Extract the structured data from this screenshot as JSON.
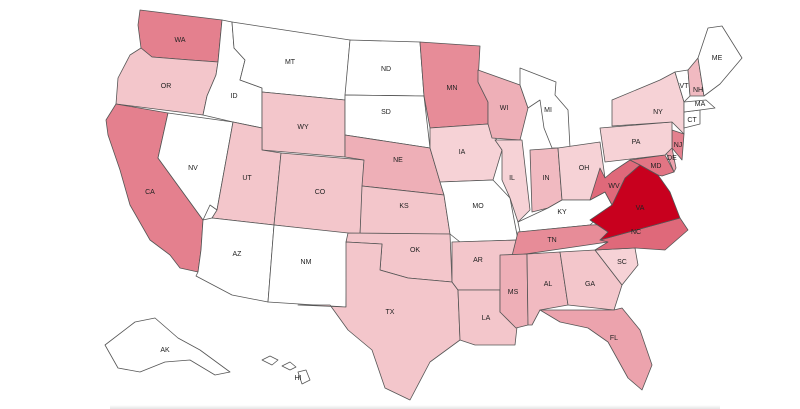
{
  "map": {
    "states": [
      {
        "code": "WA",
        "label": "WA",
        "level": 0.45
      },
      {
        "code": "OR",
        "label": "OR",
        "level": 0.15
      },
      {
        "code": "CA",
        "label": "CA",
        "level": 0.45
      },
      {
        "code": "NV",
        "label": "NV",
        "level": 0
      },
      {
        "code": "ID",
        "label": "ID",
        "level": 0
      },
      {
        "code": "MT",
        "label": "MT",
        "level": 0
      },
      {
        "code": "WY",
        "label": "WY",
        "level": 0.15
      },
      {
        "code": "UT",
        "label": "UT",
        "level": 0.15
      },
      {
        "code": "AZ",
        "label": "AZ",
        "level": 0
      },
      {
        "code": "CO",
        "label": "CO",
        "level": 0.15
      },
      {
        "code": "NM",
        "label": "NM",
        "level": 0
      },
      {
        "code": "ND",
        "label": "ND",
        "level": 0
      },
      {
        "code": "SD",
        "label": "SD",
        "level": 0
      },
      {
        "code": "NE",
        "label": "NE",
        "level": 0.25
      },
      {
        "code": "KS",
        "label": "KS",
        "level": 0.15
      },
      {
        "code": "OK",
        "label": "OK",
        "level": 0.15
      },
      {
        "code": "TX",
        "label": "TX",
        "level": 0.15
      },
      {
        "code": "MN",
        "label": "MN",
        "level": 0.4
      },
      {
        "code": "IA",
        "label": "IA",
        "level": 0.1
      },
      {
        "code": "MO",
        "label": "MO",
        "level": 0
      },
      {
        "code": "AR",
        "label": "AR",
        "level": 0.15
      },
      {
        "code": "LA",
        "label": "LA",
        "level": 0.15
      },
      {
        "code": "WI",
        "label": "WI",
        "level": 0.25
      },
      {
        "code": "IL",
        "label": "IL",
        "level": 0.1
      },
      {
        "code": "MI",
        "label": "MI",
        "level": 0
      },
      {
        "code": "IN",
        "label": "IN",
        "level": 0.2
      },
      {
        "code": "OH",
        "label": "OH",
        "level": 0.1
      },
      {
        "code": "KY",
        "label": "KY",
        "level": 0
      },
      {
        "code": "TN",
        "label": "TN",
        "level": 0.4
      },
      {
        "code": "MS",
        "label": "MS",
        "level": 0.25
      },
      {
        "code": "AL",
        "label": "AL",
        "level": 0.2
      },
      {
        "code": "GA",
        "label": "GA",
        "level": 0.15
      },
      {
        "code": "FL",
        "label": "FL",
        "level": 0.3
      },
      {
        "code": "SC",
        "label": "SC",
        "level": 0.1
      },
      {
        "code": "NC",
        "label": "NC",
        "level": 0.55
      },
      {
        "code": "VA",
        "label": "VA",
        "level": 1.0
      },
      {
        "code": "WV",
        "label": "WV",
        "level": 0.55
      },
      {
        "code": "MD",
        "label": "MD",
        "level": 0.5
      },
      {
        "code": "DE",
        "label": "DE",
        "level": 0.3
      },
      {
        "code": "NJ",
        "label": "NJ",
        "level": 0.45
      },
      {
        "code": "PA",
        "label": "PA",
        "level": 0.1
      },
      {
        "code": "NY",
        "label": "NY",
        "level": 0.1
      },
      {
        "code": "CT",
        "label": "CT",
        "level": 0
      },
      {
        "code": "MA",
        "label": "MA",
        "level": 0
      },
      {
        "code": "VT",
        "label": "VT",
        "level": 0
      },
      {
        "code": "NH",
        "label": "NH",
        "level": 0.2
      },
      {
        "code": "ME",
        "label": "ME",
        "level": 0
      },
      {
        "code": "AK",
        "label": "AK",
        "level": 0
      },
      {
        "code": "HI",
        "label": "HI",
        "level": 0
      }
    ],
    "colors": {
      "low": "#ffffff",
      "high": "#c8001e",
      "border": "#555555"
    }
  }
}
